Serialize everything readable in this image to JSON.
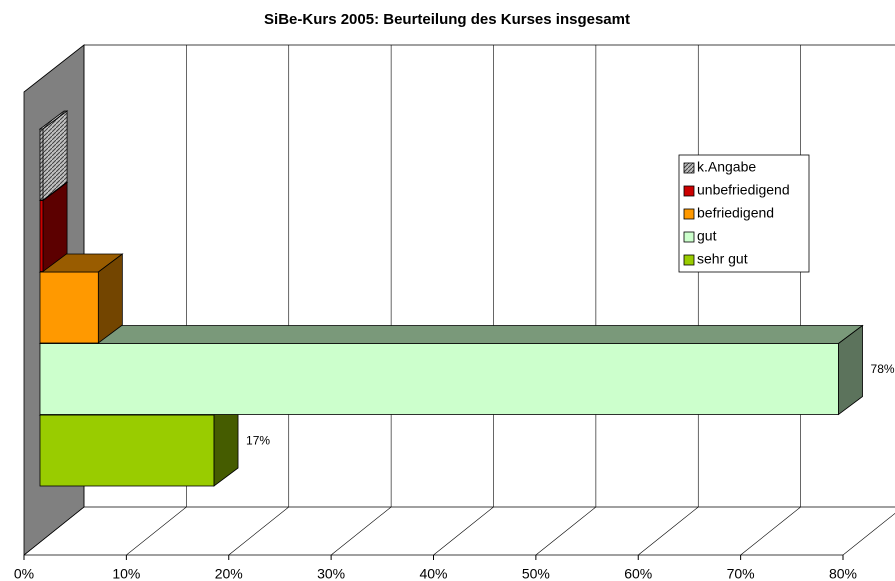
{
  "chart_data": {
    "type": "bar3d-horizontal",
    "title": "SiBe-Kurs 2005: Beurteilung des Kurses insgesamt",
    "categories": [
      "sehr gut",
      "gut",
      "befriedigend",
      "unbefriedigend",
      "k.Angabe"
    ],
    "values": [
      17,
      78,
      5.7,
      0.3,
      0.3
    ],
    "value_labels": [
      "17%",
      "78%",
      null,
      null,
      null
    ],
    "colors": [
      "#99cc00",
      "#ccffcc",
      "#ff9900",
      "#cc0000",
      "#c0c0c0"
    ],
    "hatched": [
      false,
      false,
      false,
      false,
      true
    ],
    "xlim": [
      0,
      80
    ],
    "xticks": [
      {
        "value": 0,
        "label": "0%"
      },
      {
        "value": 10,
        "label": "10%"
      },
      {
        "value": 20,
        "label": "20%"
      },
      {
        "value": 30,
        "label": "30%"
      },
      {
        "value": 40,
        "label": "40%"
      },
      {
        "value": 50,
        "label": "50%"
      },
      {
        "value": 60,
        "label": "60%"
      },
      {
        "value": 70,
        "label": "70%"
      },
      {
        "value": 80,
        "label": "80%"
      }
    ],
    "grid": true
  }
}
